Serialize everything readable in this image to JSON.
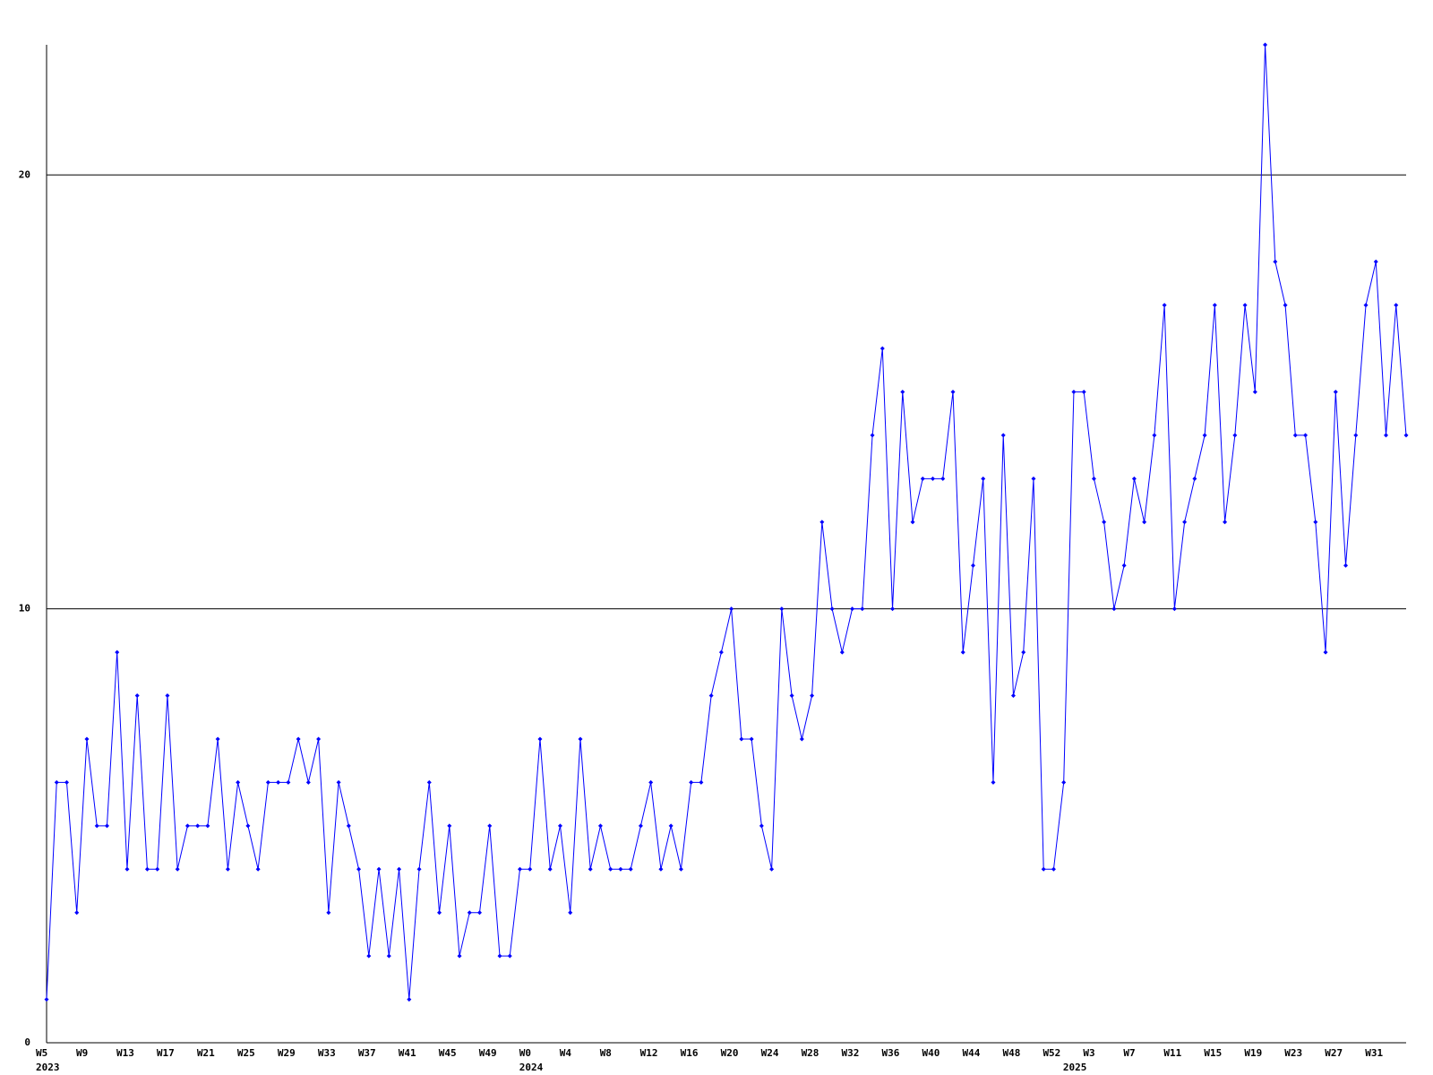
{
  "chart_data": {
    "type": "line",
    "categories": [
      "W5",
      null,
      null,
      null,
      "W9",
      null,
      null,
      null,
      "W13",
      null,
      null,
      null,
      "W17",
      null,
      null,
      null,
      "W21",
      null,
      null,
      null,
      "W25",
      null,
      null,
      null,
      "W29",
      null,
      null,
      null,
      "W33",
      null,
      null,
      null,
      "W37",
      null,
      null,
      null,
      "W41",
      null,
      null,
      null,
      "W45",
      null,
      null,
      null,
      "W49",
      null,
      null,
      null,
      "W0",
      null,
      null,
      null,
      "W4",
      null,
      null,
      null,
      "W8",
      null,
      null,
      null,
      "W12",
      null,
      null,
      null,
      "W16",
      null,
      null,
      null,
      "W20",
      null,
      null,
      null,
      "W24",
      null,
      null,
      null,
      "W28",
      null,
      null,
      null,
      "W32",
      null,
      null,
      null,
      "W36",
      null,
      null,
      null,
      "W40",
      null,
      null,
      null,
      "W44",
      null,
      null,
      null,
      "W48",
      null,
      null,
      null,
      "W52",
      null,
      null,
      null,
      "W3",
      null,
      null,
      null,
      "W7",
      null,
      null,
      null,
      "W11",
      null,
      null,
      null,
      "W15",
      null,
      null,
      null,
      "W19",
      null,
      null,
      null,
      "W23",
      null,
      null,
      null,
      "W27",
      null,
      null,
      null,
      "W31",
      null,
      null,
      null
    ],
    "category_years": [
      "2023",
      null,
      null,
      null,
      null,
      null,
      null,
      null,
      null,
      null,
      null,
      null,
      null,
      null,
      null,
      null,
      null,
      null,
      null,
      null,
      null,
      null,
      null,
      null,
      null,
      null,
      null,
      null,
      null,
      null,
      null,
      null,
      null,
      null,
      null,
      null,
      null,
      null,
      null,
      null,
      null,
      null,
      null,
      null,
      null,
      null,
      null,
      null,
      "2024",
      null,
      null,
      null,
      null,
      null,
      null,
      null,
      null,
      null,
      null,
      null,
      null,
      null,
      null,
      null,
      null,
      null,
      null,
      null,
      null,
      null,
      null,
      null,
      null,
      null,
      null,
      null,
      null,
      null,
      null,
      null,
      null,
      null,
      null,
      null,
      null,
      null,
      null,
      null,
      null,
      null,
      null,
      null,
      null,
      null,
      null,
      null,
      null,
      null,
      null,
      null,
      null,
      null,
      "2025",
      null,
      null,
      null,
      null,
      null,
      null,
      null,
      null,
      null,
      null,
      null,
      null,
      null,
      null,
      null,
      null,
      null,
      null,
      null,
      null,
      null,
      null,
      null,
      null,
      null,
      null,
      null,
      null,
      null,
      null,
      null,
      null,
      null
    ],
    "values": [
      1,
      6,
      6,
      3,
      7,
      5,
      5,
      9,
      4,
      8,
      4,
      4,
      8,
      4,
      5,
      5,
      5,
      7,
      4,
      6,
      5,
      4,
      6,
      6,
      6,
      7,
      6,
      7,
      3,
      6,
      5,
      4,
      2,
      4,
      2,
      4,
      1,
      4,
      6,
      3,
      5,
      2,
      3,
      3,
      5,
      2,
      2,
      4,
      4,
      7,
      4,
      5,
      3,
      7,
      4,
      5,
      4,
      4,
      4,
      5,
      6,
      4,
      5,
      4,
      6,
      6,
      8,
      9,
      10,
      7,
      7,
      5,
      4,
      10,
      8,
      7,
      8,
      12,
      10,
      9,
      10,
      10,
      14,
      16,
      10,
      15,
      12,
      13,
      13,
      13,
      15,
      9,
      11,
      13,
      6,
      14,
      8,
      9,
      13,
      4,
      4,
      6,
      15,
      15,
      13,
      12,
      10,
      11,
      13,
      12,
      14,
      17,
      10,
      12,
      13,
      14,
      17,
      12,
      14,
      17,
      15,
      23,
      18,
      17,
      14,
      14,
      12,
      9,
      15,
      11,
      14,
      17,
      18,
      14,
      17,
      14
    ],
    "color": "#0000ff",
    "ylim": [
      0,
      23
    ],
    "yticks": [
      0,
      10,
      20
    ],
    "grid": true
  }
}
